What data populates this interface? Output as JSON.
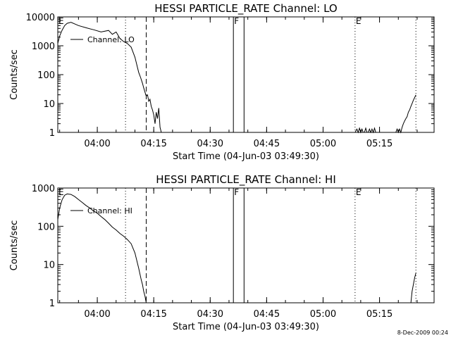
{
  "footer": {
    "timestamp": "8-Dec-2009 00:24"
  },
  "style": {
    "line_color": "#000000",
    "background": "#ffffff"
  },
  "chart_data": [
    {
      "type": "line",
      "title": "HESSI PARTICLE_RATE Channel: LO",
      "xlabel": "Start Time (04-Jun-03 03:49:30)",
      "ylabel": "Counts/sec",
      "y_scale": "log",
      "ylim": [
        1,
        10000
      ],
      "xlim": [
        "03:49:30",
        "05:29:30"
      ],
      "x_ticks": [
        "04:00",
        "04:15",
        "04:30",
        "04:45",
        "05:00",
        "05:15"
      ],
      "y_ticks": [
        "1",
        "10",
        "100",
        "1000",
        "10000"
      ],
      "legend": {
        "placement": "top-left",
        "entries": [
          "Channel: LO"
        ]
      },
      "markers": [
        {
          "label": "E",
          "time": "03:49:30",
          "style": "tick"
        },
        {
          "label": "",
          "time": "04:07:30",
          "style": "dotted"
        },
        {
          "label": "",
          "time": "04:13:00",
          "style": "dashed"
        },
        {
          "label": "F",
          "time": "04:36:10",
          "style": "solid"
        },
        {
          "label": "",
          "time": "04:39:00",
          "style": "solid"
        },
        {
          "label": "E",
          "time": "05:08:30",
          "style": "dotted"
        },
        {
          "label": "",
          "time": "05:24:40",
          "style": "dotted"
        }
      ],
      "series": [
        {
          "name": "Channel: LO",
          "segments": [
            {
              "x": [
                "03:49:30",
                "03:50:00",
                "03:50:40",
                "03:51:20",
                "03:52:00",
                "03:53:00",
                "03:55:00",
                "03:57:00",
                "03:59:00",
                "04:01:00",
                "04:03:00",
                "04:04:00",
                "04:05:00",
                "04:06:00",
                "04:07:00",
                "04:08:00",
                "04:09:00",
                "04:10:00",
                "04:11:00",
                "04:11:30",
                "04:12:00",
                "04:12:20",
                "04:12:40",
                "04:13:00",
                "04:13:20",
                "04:13:40",
                "04:14:00",
                "04:14:20",
                "04:14:40",
                "04:15:00",
                "04:15:20",
                "04:15:40",
                "04:16:00",
                "04:16:20",
                "04:16:40",
                "04:17:00"
              ],
              "y": [
                1200,
                2200,
                3500,
                5000,
                6000,
                6500,
                5000,
                4200,
                3600,
                3000,
                3400,
                2500,
                3000,
                1800,
                1400,
                1200,
                900,
                400,
                120,
                80,
                50,
                35,
                25,
                18,
                20,
                12,
                14,
                8,
                6,
                4,
                2,
                5,
                3,
                7,
                1.5,
                1
              ]
            },
            {
              "x": [
                "05:08:30",
                "05:09:00",
                "05:09:20",
                "05:09:40",
                "05:10:00",
                "05:10:20",
                "05:10:40",
                "05:11:00",
                "05:11:20",
                "05:11:40",
                "05:12:00",
                "05:12:20",
                "05:12:40",
                "05:13:00",
                "05:13:20",
                "05:13:40",
                "05:14:00",
                "05:14:20",
                "05:14:40",
                "05:15:00",
                "05:15:20",
                "05:15:40",
                "05:16:00",
                "05:16:20",
                "05:16:40",
                "05:17:00",
                "05:17:20",
                "05:17:40",
                "05:18:00",
                "05:18:20",
                "05:18:40",
                "05:19:00",
                "05:19:20",
                "05:19:40",
                "05:20:00",
                "05:20:20",
                "05:20:40",
                "05:21:00",
                "05:21:20",
                "05:21:40",
                "05:22:00",
                "05:22:20",
                "05:22:40",
                "05:23:00",
                "05:23:20",
                "05:23:40",
                "05:24:00",
                "05:24:20",
                "05:24:40"
              ],
              "y": [
                1,
                1.3,
                1,
                1.4,
                1,
                1.3,
                1,
                1,
                1.4,
                1,
                1,
                1.3,
                1,
                1.3,
                1,
                1.4,
                1,
                1,
                1,
                1,
                1,
                1,
                1,
                1,
                1,
                1,
                1,
                1,
                1,
                1,
                1,
                1,
                1,
                1.3,
                1,
                1.3,
                1,
                1.5,
                2,
                2.5,
                3,
                3.5,
                5,
                6,
                8,
                10,
                13,
                16,
                20
              ]
            }
          ]
        }
      ]
    },
    {
      "type": "line",
      "title": "HESSI PARTICLE_RATE Channel: HI",
      "xlabel": "Start Time (04-Jun-03 03:49:30)",
      "ylabel": "Counts/sec",
      "y_scale": "log",
      "ylim": [
        1,
        1000
      ],
      "xlim": [
        "03:49:30",
        "05:29:30"
      ],
      "x_ticks": [
        "04:00",
        "04:15",
        "04:30",
        "04:45",
        "05:00",
        "05:15"
      ],
      "y_ticks": [
        "1",
        "10",
        "100",
        "1000"
      ],
      "legend": {
        "placement": "top-left",
        "entries": [
          "Channel: HI"
        ]
      },
      "markers": [
        {
          "label": "E",
          "time": "03:49:30",
          "style": "tick"
        },
        {
          "label": "",
          "time": "04:07:30",
          "style": "dotted"
        },
        {
          "label": "",
          "time": "04:13:00",
          "style": "dashed"
        },
        {
          "label": "F",
          "time": "04:36:10",
          "style": "solid"
        },
        {
          "label": "",
          "time": "04:39:00",
          "style": "solid"
        },
        {
          "label": "E",
          "time": "05:08:30",
          "style": "dotted"
        },
        {
          "label": "",
          "time": "05:24:40",
          "style": "dotted"
        }
      ],
      "series": [
        {
          "name": "Channel: HI",
          "segments": [
            {
              "x": [
                "03:49:30",
                "03:50:00",
                "03:50:40",
                "03:51:20",
                "03:52:00",
                "03:53:00",
                "03:54:00",
                "03:55:00",
                "03:56:00",
                "03:57:00",
                "03:58:00",
                "03:59:00",
                "04:00:00",
                "04:01:00",
                "04:02:00",
                "04:03:00",
                "04:04:00",
                "04:05:00",
                "04:06:00",
                "04:07:00",
                "04:08:00",
                "04:09:00",
                "04:10:00",
                "04:11:00",
                "04:11:40",
                "04:12:00",
                "04:12:20",
                "04:12:40",
                "04:13:00"
              ],
              "y": [
                150,
                300,
                500,
                650,
                700,
                680,
                600,
                500,
                420,
                350,
                300,
                250,
                220,
                180,
                150,
                120,
                95,
                80,
                65,
                55,
                45,
                35,
                20,
                8,
                4,
                3,
                2,
                1.5,
                1
              ]
            },
            {
              "x": [
                "05:23:20",
                "05:23:40",
                "05:24:00",
                "05:24:20",
                "05:24:40"
              ],
              "y": [
                1,
                2,
                3,
                4.5,
                6
              ]
            }
          ]
        }
      ]
    }
  ]
}
